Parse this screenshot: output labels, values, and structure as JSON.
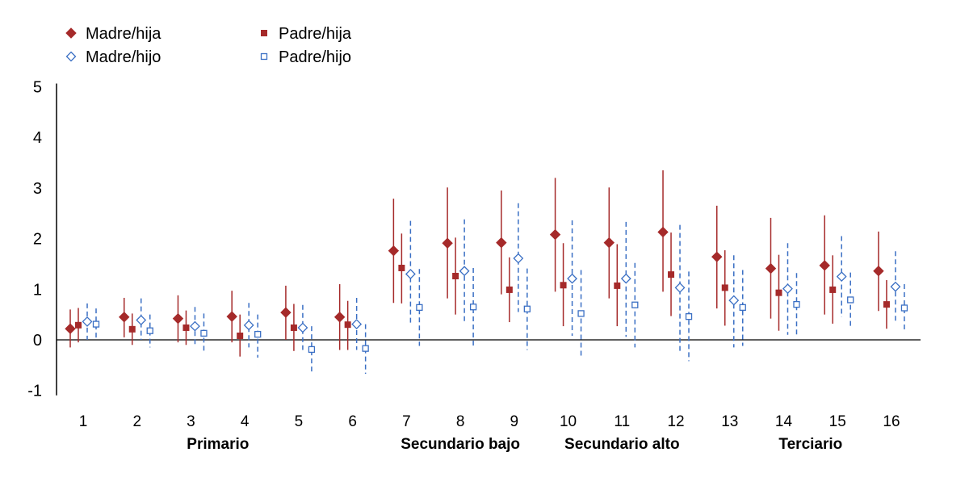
{
  "chart_data": {
    "type": "scatter",
    "title": "",
    "xlabel": "",
    "ylabel": "",
    "ylim": [
      -1,
      5
    ],
    "y_ticks": [
      "5",
      "4",
      "3",
      "2",
      "1",
      "0",
      "-1"
    ],
    "categories": [
      "1",
      "2",
      "3",
      "4",
      "5",
      "6",
      "7",
      "8",
      "9",
      "10",
      "11",
      "12",
      "13",
      "14",
      "15",
      "16"
    ],
    "groups": [
      {
        "label": "Primario",
        "from": 1,
        "to": 6
      },
      {
        "label": "Secundario bajo",
        "from": 7,
        "to": 9
      },
      {
        "label": "Secundario alto",
        "from": 10,
        "to": 12
      },
      {
        "label": "Terciario",
        "from": 13,
        "to": 16
      }
    ],
    "legend_position": "top-left",
    "grid": false,
    "series": [
      {
        "name": "Madre/hija",
        "marker": "diamond-filled",
        "color": "#a52a2a",
        "error_style": "solid",
        "values": [
          0.22,
          0.45,
          0.42,
          0.46,
          0.54,
          0.45,
          1.76,
          1.91,
          1.92,
          2.08,
          1.92,
          2.13,
          1.64,
          1.41,
          1.47,
          1.36
        ],
        "lower": [
          -0.15,
          0.05,
          -0.05,
          -0.05,
          0.0,
          -0.2,
          0.73,
          0.82,
          0.9,
          0.95,
          0.82,
          0.95,
          0.62,
          0.42,
          0.5,
          0.57
        ],
        "upper": [
          0.6,
          0.83,
          0.88,
          0.97,
          1.07,
          1.1,
          2.79,
          3.01,
          2.95,
          3.2,
          3.01,
          3.35,
          2.65,
          2.41,
          2.46,
          2.14
        ]
      },
      {
        "name": "Padre/hija",
        "marker": "square-filled",
        "color": "#a52a2a",
        "error_style": "solid",
        "values": [
          0.29,
          0.21,
          0.24,
          0.08,
          0.24,
          0.3,
          1.42,
          1.26,
          0.99,
          1.08,
          1.07,
          1.29,
          1.03,
          0.93,
          0.99,
          0.7
        ],
        "lower": [
          -0.05,
          -0.1,
          -0.1,
          -0.33,
          -0.22,
          -0.2,
          0.72,
          0.5,
          0.35,
          0.27,
          0.27,
          0.47,
          0.28,
          0.18,
          0.32,
          0.22
        ],
        "upper": [
          0.63,
          0.52,
          0.58,
          0.5,
          0.71,
          0.77,
          2.1,
          2.02,
          1.63,
          1.91,
          1.89,
          2.12,
          1.77,
          1.68,
          1.67,
          1.18
        ]
      },
      {
        "name": "Madre/hijo",
        "marker": "diamond-open",
        "color": "#3a6fc4",
        "error_style": "dashed",
        "values": [
          0.36,
          0.39,
          0.27,
          0.29,
          0.24,
          0.31,
          1.3,
          1.36,
          1.61,
          1.21,
          1.21,
          1.03,
          0.78,
          1.01,
          1.25,
          1.05
        ],
        "lower": [
          0.0,
          0.0,
          -0.1,
          -0.15,
          -0.2,
          -0.2,
          0.28,
          0.32,
          0.55,
          0.08,
          0.06,
          -0.22,
          -0.15,
          0.1,
          0.45,
          0.35
        ],
        "upper": [
          0.72,
          0.82,
          0.65,
          0.73,
          0.69,
          0.83,
          2.35,
          2.38,
          2.7,
          2.36,
          2.33,
          2.27,
          1.67,
          1.91,
          2.05,
          1.75
        ]
      },
      {
        "name": "Padre/hijo",
        "marker": "square-open",
        "color": "#3a6fc4",
        "error_style": "dashed",
        "values": [
          0.31,
          0.18,
          0.13,
          0.11,
          -0.19,
          -0.17,
          0.64,
          0.65,
          0.61,
          0.52,
          0.69,
          0.46,
          0.64,
          0.7,
          0.79,
          0.63
        ],
        "lower": [
          0.0,
          -0.15,
          -0.25,
          -0.35,
          -0.65,
          -0.67,
          -0.12,
          -0.13,
          -0.2,
          -0.35,
          -0.15,
          -0.42,
          -0.12,
          0.08,
          0.25,
          0.15
        ],
        "upper": [
          0.62,
          0.5,
          0.52,
          0.5,
          0.27,
          0.31,
          1.4,
          1.42,
          1.41,
          1.38,
          1.52,
          1.35,
          1.38,
          1.32,
          1.33,
          1.1
        ]
      }
    ]
  }
}
